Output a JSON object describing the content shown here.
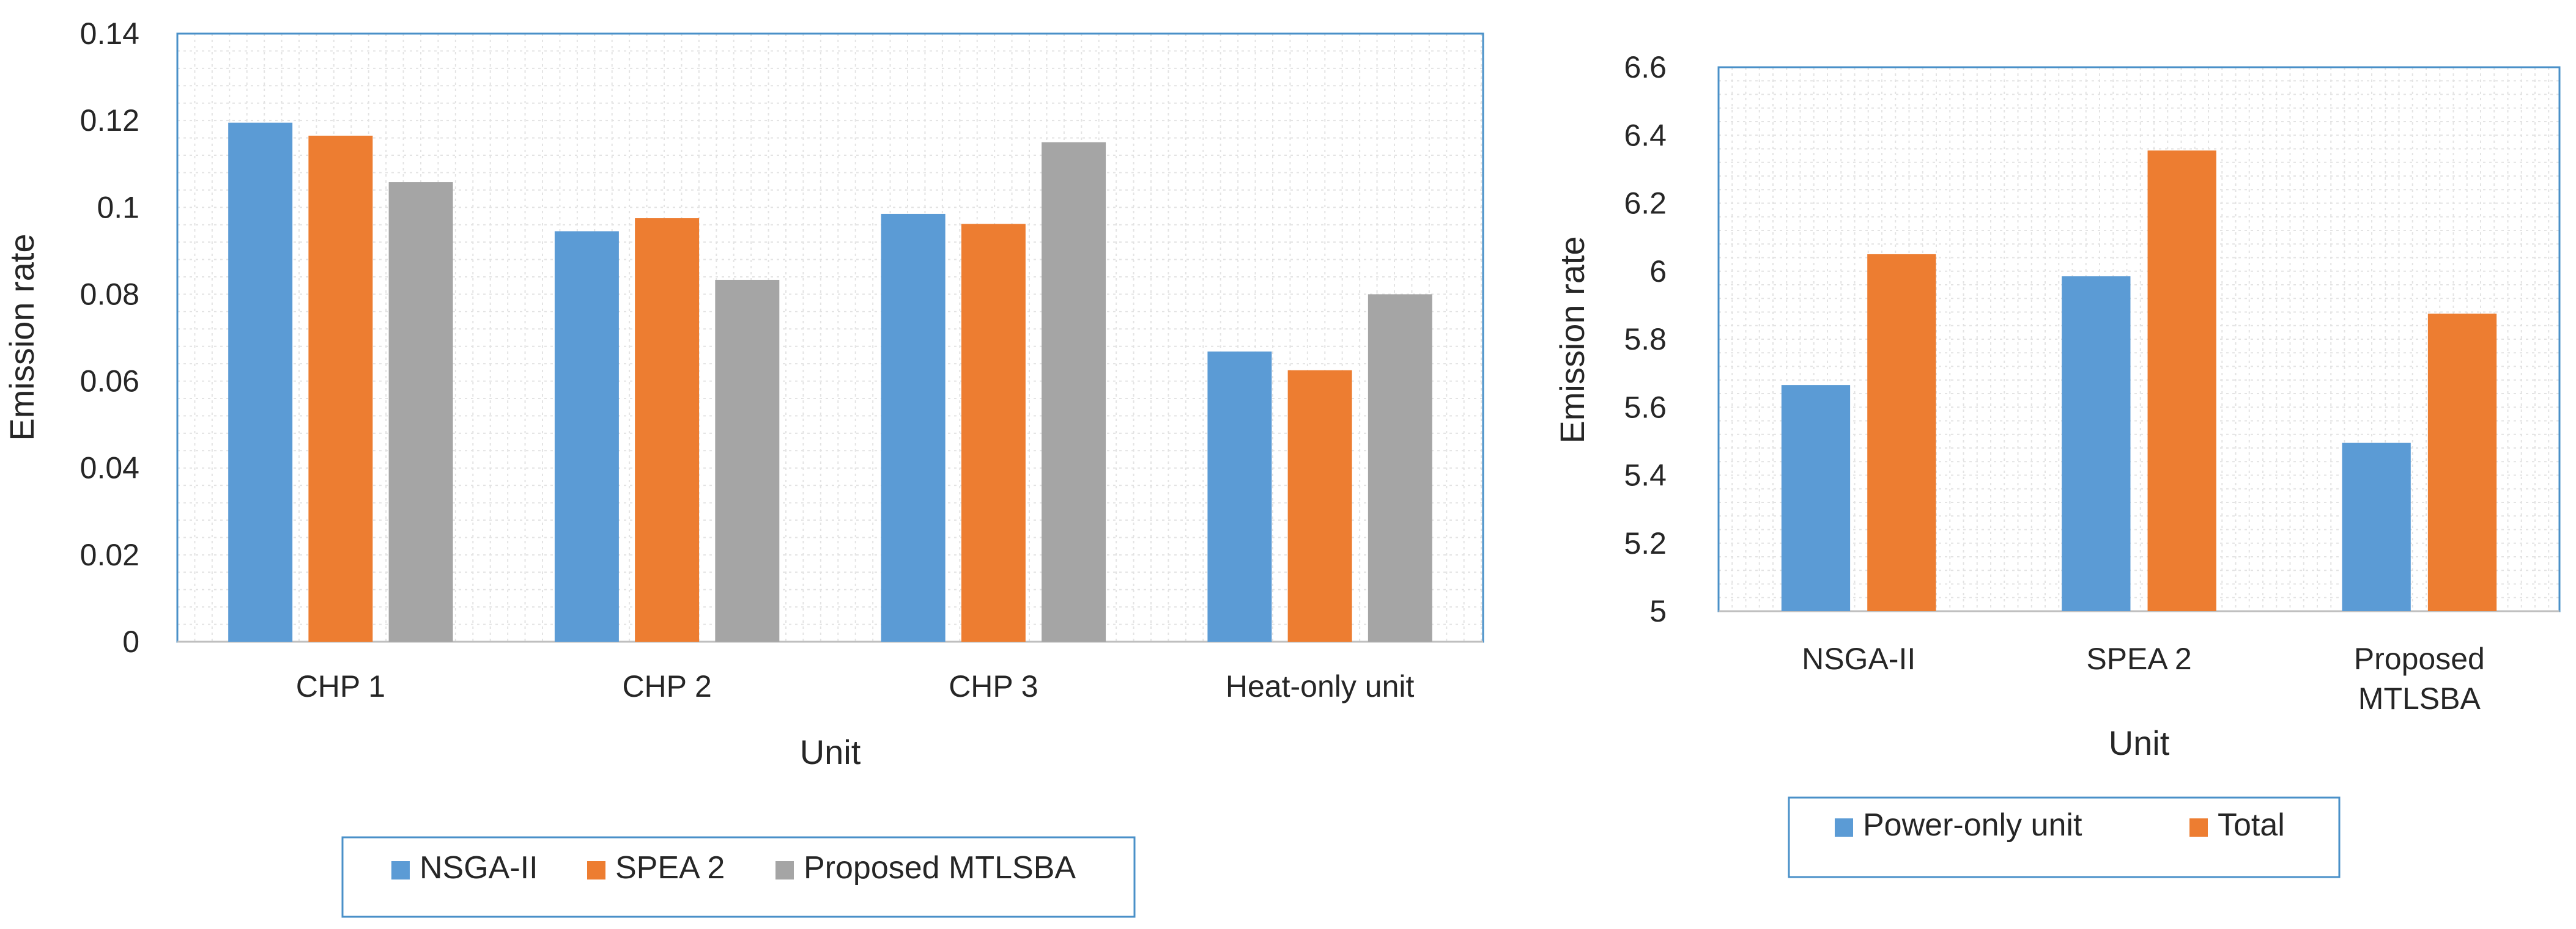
{
  "chart_data": [
    {
      "type": "bar",
      "title": "",
      "xlabel": "Unit",
      "ylabel": "Emission rate",
      "ylim": [
        0,
        0.14
      ],
      "ytick_step": 0.02,
      "yticks": [
        "0",
        "0.02",
        "0.04",
        "0.06",
        "0.08",
        "0.1",
        "0.12",
        "0.14"
      ],
      "grid": true,
      "categories": [
        "CHP 1",
        "CHP 2",
        "CHP 3",
        "Heat-only unit"
      ],
      "series": [
        {
          "name": "NSGA-II",
          "color": "#5B9BD5",
          "values": [
            0.1195,
            0.0945,
            0.0985,
            0.0668
          ]
        },
        {
          "name": "SPEA 2",
          "color": "#ED7D31",
          "values": [
            0.1165,
            0.0975,
            0.0962,
            0.0625
          ]
        },
        {
          "name": "Proposed MTLSBA",
          "color": "#A5A5A5",
          "values": [
            0.1058,
            0.0833,
            0.115,
            0.08
          ]
        }
      ],
      "legend_position": "bottom"
    },
    {
      "type": "bar",
      "title": "",
      "xlabel": "Unit",
      "ylabel": "Emission rate",
      "ylim": [
        5,
        6.6
      ],
      "ytick_step": 0.2,
      "yticks": [
        "5",
        "5.2",
        "5.4",
        "5.6",
        "5.8",
        "6",
        "6.2",
        "6.4",
        "6.6"
      ],
      "grid": true,
      "categories": [
        [
          "NSGA-II"
        ],
        [
          "SPEA 2"
        ],
        [
          "Proposed",
          "MTLSBA"
        ]
      ],
      "series": [
        {
          "name": "Power-only unit",
          "color": "#5B9BD5",
          "values": [
            5.665,
            5.985,
            5.495
          ]
        },
        {
          "name": "Total",
          "color": "#ED7D31",
          "values": [
            6.05,
            6.355,
            5.875
          ]
        }
      ],
      "legend_position": "bottom"
    }
  ],
  "colors": {
    "frame": "#4A90C8",
    "grid": "#E3E3E3",
    "axis": "#BFBFBF",
    "text": "#262626"
  }
}
